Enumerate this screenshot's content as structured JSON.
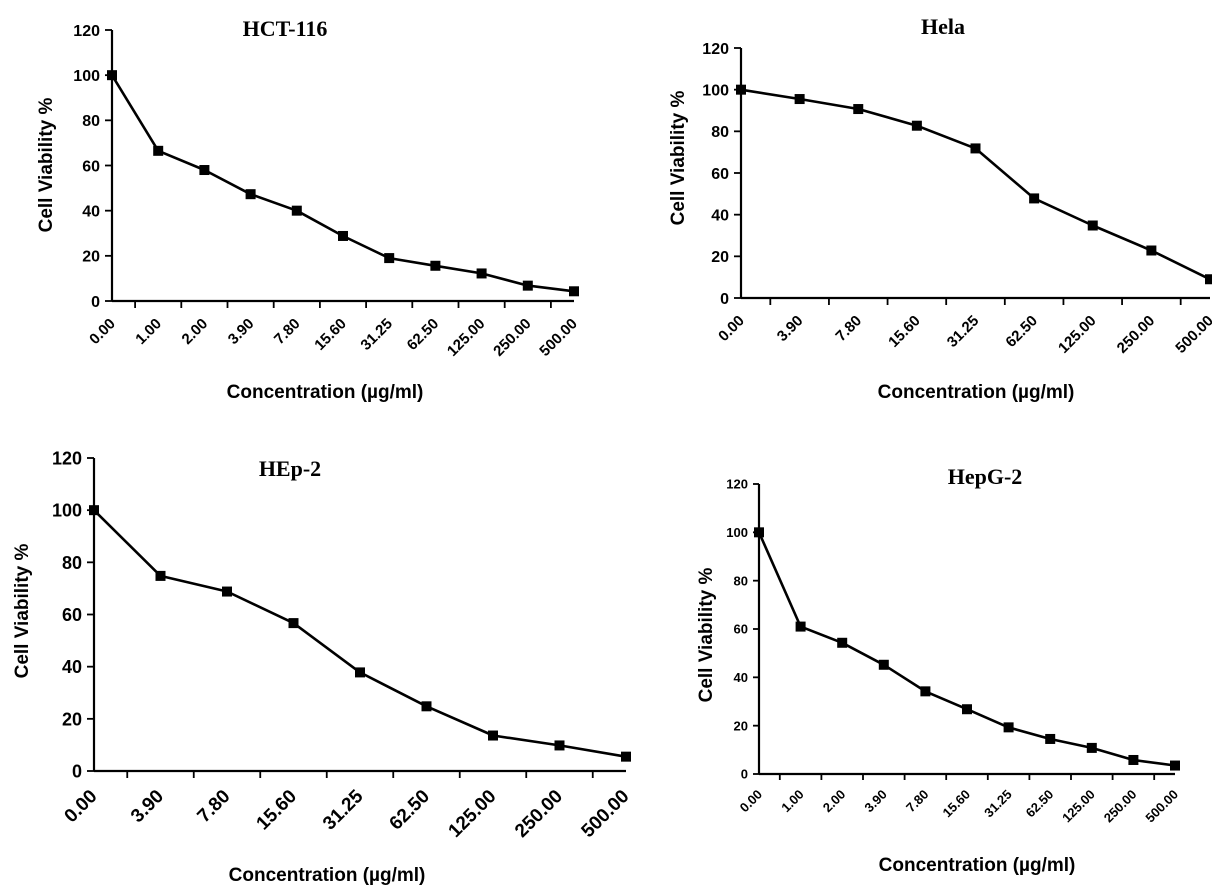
{
  "chart_data": [
    {
      "type": "line",
      "title": "HCT-116",
      "xlabel": "Concentration (µg/ml)",
      "ylabel": "Cell Viability %",
      "ylim": [
        0,
        120
      ],
      "yticks": [
        "0",
        "20",
        "40",
        "60",
        "80",
        "100",
        "120"
      ],
      "categories": [
        "0.00",
        "1.00",
        "2.00",
        "3.90",
        "7.80",
        "15.60",
        "31.25",
        "62.50",
        "125.00",
        "250.00",
        "500.00"
      ],
      "values": [
        100,
        66.5,
        58,
        47.3,
        40,
        28.8,
        19,
        15.6,
        12.2,
        6.8,
        4.3
      ]
    },
    {
      "type": "line",
      "title": "Hela",
      "xlabel": "Concentration (µg/ml)",
      "ylabel": "Cell Viability %",
      "ylim": [
        0,
        120
      ],
      "yticks": [
        "0",
        "20",
        "40",
        "60",
        "80",
        "100",
        "120"
      ],
      "categories": [
        "0.00",
        "3.90",
        "7.80",
        "15.60",
        "31.25",
        "62.50",
        "125.00",
        "250.00",
        "500.00"
      ],
      "values": [
        100,
        95.5,
        90.7,
        82.7,
        71.8,
        47.8,
        34.8,
        22.8,
        9
      ]
    },
    {
      "type": "line",
      "title": "HEp-2",
      "xlabel": "Concentration (µg/ml)",
      "ylabel": "Cell Viability %",
      "ylim": [
        0,
        120
      ],
      "yticks": [
        "0",
        "20",
        "40",
        "60",
        "80",
        "100",
        "120"
      ],
      "categories": [
        "0.00",
        "3.90",
        "7.80",
        "15.60",
        "31.25",
        "62.50",
        "125.00",
        "250.00",
        "500.00"
      ],
      "values": [
        100,
        74.8,
        68.8,
        56.7,
        37.8,
        24.8,
        13.6,
        9.8,
        5.5
      ]
    },
    {
      "type": "line",
      "title": "HepG-2",
      "xlabel": "Concentration (µg/ml)",
      "ylabel": "Cell Viability %",
      "ylim": [
        0,
        120
      ],
      "yticks": [
        "0",
        "20",
        "40",
        "60",
        "80",
        "100",
        "120"
      ],
      "categories": [
        "0.00",
        "1.00",
        "2.00",
        "3.90",
        "7.80",
        "15.60",
        "31.25",
        "62.50",
        "125.00",
        "250.00",
        "500.00"
      ],
      "values": [
        100,
        61,
        54.3,
        45.2,
        34.2,
        26.8,
        19.3,
        14.5,
        10.8,
        5.8,
        3.5
      ]
    }
  ]
}
